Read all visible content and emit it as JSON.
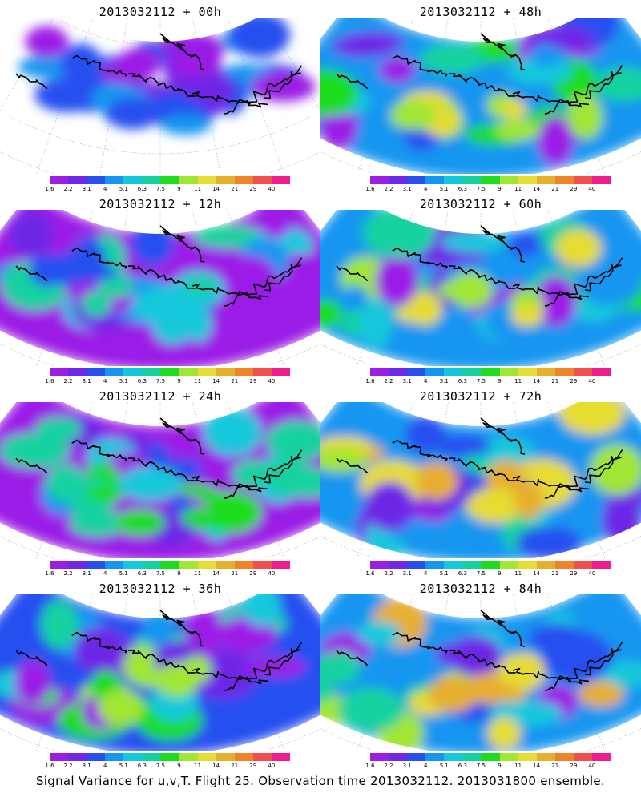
{
  "footer": "Signal Variance for u,v,T. Flight 25. Observation time 2013032112. 2013031800 ensemble.",
  "colorbar": {
    "labels": [
      "1.6",
      "2.2",
      "3.1",
      "4",
      "5.1",
      "6.3",
      "7.5",
      "9",
      "11",
      "14",
      "21",
      "29",
      "40"
    ],
    "colors": [
      "#9b1ee6",
      "#6e28e6",
      "#2850f0",
      "#1496f0",
      "#14c8dc",
      "#14d2a0",
      "#1edc1e",
      "#a0e632",
      "#e6dc32",
      "#e6af2d",
      "#f08228",
      "#f05050",
      "#f01e8c"
    ]
  },
  "panels": [
    {
      "title": "2013032112 + 00h",
      "intensity": 0.2,
      "coverage": 0.55
    },
    {
      "title": "2013032112 + 48h",
      "intensity": 0.65,
      "coverage": 0.9
    },
    {
      "title": "2013032112 + 12h",
      "intensity": 0.4,
      "coverage": 0.7
    },
    {
      "title": "2013032112 + 60h",
      "intensity": 0.72,
      "coverage": 0.95
    },
    {
      "title": "2013032112 + 24h",
      "intensity": 0.5,
      "coverage": 0.8
    },
    {
      "title": "2013032112 + 72h",
      "intensity": 0.78,
      "coverage": 0.98
    },
    {
      "title": "2013032112 + 36h",
      "intensity": 0.58,
      "coverage": 0.85
    },
    {
      "title": "2013032112 + 84h",
      "intensity": 0.82,
      "coverage": 1.0
    }
  ]
}
